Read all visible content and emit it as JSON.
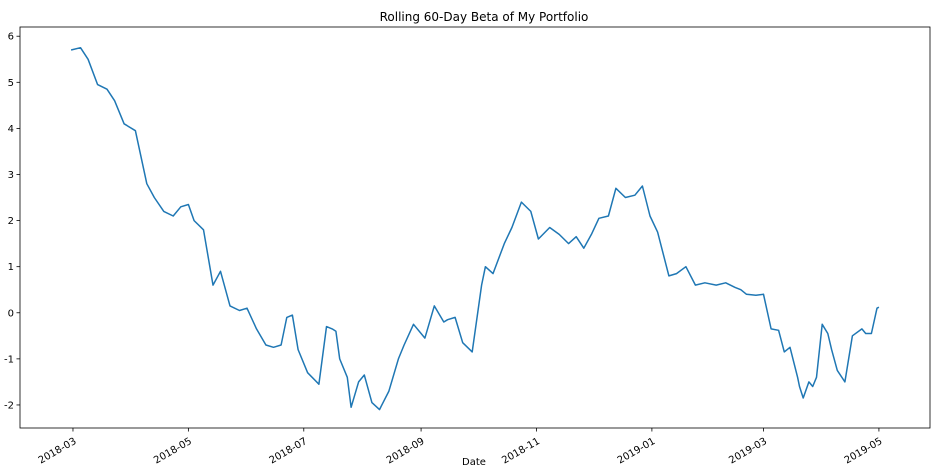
{
  "chart_data": {
    "type": "line",
    "title": "Rolling 60-Day Beta of My Portfolio",
    "xlabel": "Date",
    "ylabel": "",
    "ylim": [
      -2.5,
      6.2
    ],
    "grid": false,
    "legend": "none",
    "line_color": "#1f77b4",
    "x_ticks": [
      "2018-03",
      "2018-05",
      "2018-07",
      "2018-09",
      "2018-11",
      "2019-01",
      "2019-03",
      "2019-05"
    ],
    "y_ticks": [
      6,
      5,
      4,
      3,
      2,
      1,
      0,
      -1,
      -2
    ],
    "series": [
      {
        "x": [
          "2018-02-28",
          "2018-03-05",
          "2018-03-09",
          "2018-03-14",
          "2018-03-19",
          "2018-03-23",
          "2018-03-28",
          "2018-04-03",
          "2018-04-09",
          "2018-04-13",
          "2018-04-18",
          "2018-04-23",
          "2018-04-27",
          "2018-05-01",
          "2018-05-04",
          "2018-05-09",
          "2018-05-14",
          "2018-05-18",
          "2018-05-23",
          "2018-05-28",
          "2018-06-01",
          "2018-06-06",
          "2018-06-11",
          "2018-06-15",
          "2018-06-19",
          "2018-06-22",
          "2018-06-25",
          "2018-06-28",
          "2018-07-03",
          "2018-07-09",
          "2018-07-13",
          "2018-07-16",
          "2018-07-18",
          "2018-07-20",
          "2018-07-24",
          "2018-07-26",
          "2018-07-30",
          "2018-08-02",
          "2018-08-06",
          "2018-08-10",
          "2018-08-15",
          "2018-08-20",
          "2018-08-23",
          "2018-08-28",
          "2018-09-03",
          "2018-09-08",
          "2018-09-13",
          "2018-09-15",
          "2018-09-19",
          "2018-09-23",
          "2018-09-28",
          "2018-10-03",
          "2018-10-05",
          "2018-10-09",
          "2018-10-15",
          "2018-10-19",
          "2018-10-24",
          "2018-10-29",
          "2018-11-02",
          "2018-11-08",
          "2018-11-13",
          "2018-11-18",
          "2018-11-22",
          "2018-11-26",
          "2018-11-30",
          "2018-12-04",
          "2018-12-09",
          "2018-12-13",
          "2018-12-18",
          "2018-12-23",
          "2018-12-27",
          "2018-12-31",
          "2019-01-04",
          "2019-01-10",
          "2019-01-14",
          "2019-01-19",
          "2019-01-24",
          "2019-01-29",
          "2019-02-04",
          "2019-02-09",
          "2019-02-14",
          "2019-02-17",
          "2019-02-20",
          "2019-02-25",
          "2019-03-01",
          "2019-03-05",
          "2019-03-09",
          "2019-03-12",
          "2019-03-15",
          "2019-03-19",
          "2019-03-20",
          "2019-03-22",
          "2019-03-25",
          "2019-03-27",
          "2019-03-29",
          "2019-04-01",
          "2019-04-04",
          "2019-04-06",
          "2019-04-09",
          "2019-04-13",
          "2019-04-17",
          "2019-04-22",
          "2019-04-24",
          "2019-04-27",
          "2019-04-30",
          "2019-05-01"
        ],
        "y": [
          5.7,
          5.75,
          5.5,
          4.95,
          4.85,
          4.6,
          4.1,
          3.95,
          2.8,
          2.5,
          2.2,
          2.1,
          2.3,
          2.35,
          2.0,
          1.8,
          0.6,
          0.9,
          0.15,
          0.05,
          0.1,
          -0.35,
          -0.7,
          -0.75,
          -0.7,
          -0.1,
          -0.05,
          -0.8,
          -1.3,
          -1.55,
          -0.3,
          -0.35,
          -0.4,
          -1.0,
          -1.4,
          -2.05,
          -1.5,
          -1.35,
          -1.95,
          -2.1,
          -1.7,
          -1.0,
          -0.7,
          -0.25,
          -0.55,
          0.15,
          -0.2,
          -0.15,
          -0.1,
          -0.65,
          -0.85,
          0.6,
          1.0,
          0.85,
          1.5,
          1.85,
          2.4,
          2.2,
          1.6,
          1.85,
          1.7,
          1.5,
          1.65,
          1.4,
          1.7,
          2.05,
          2.1,
          2.7,
          2.5,
          2.55,
          2.75,
          2.1,
          1.75,
          0.8,
          0.85,
          1.0,
          0.6,
          0.65,
          0.6,
          0.65,
          0.55,
          0.5,
          0.4,
          0.38,
          0.4,
          -0.35,
          -0.38,
          -0.85,
          -0.75,
          -1.4,
          -1.6,
          -1.85,
          -1.5,
          -1.6,
          -1.4,
          -0.25,
          -0.45,
          -0.8,
          -1.25,
          -1.5,
          -0.5,
          -0.35,
          -0.45,
          -0.45,
          0.1,
          0.12
        ]
      }
    ]
  }
}
